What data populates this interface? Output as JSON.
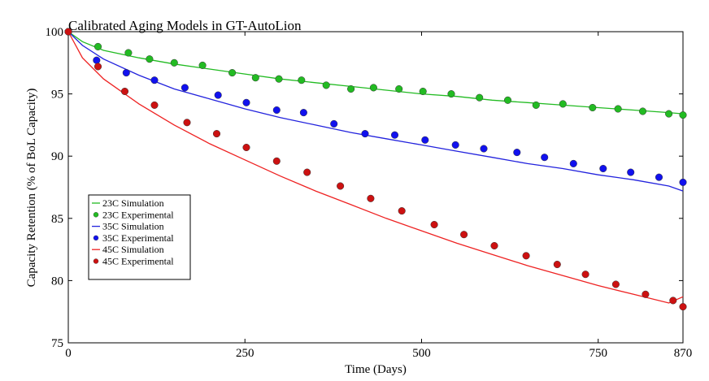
{
  "chart_data": {
    "type": "line",
    "title": "Calibrated Aging Models in GT-AutoLion",
    "xlabel": "Time (Days)",
    "ylabel": "Capacity Retention (% of BoL Capacity)",
    "xlim": [
      0,
      870
    ],
    "ylim": [
      75,
      100
    ],
    "xticks": [
      0,
      250,
      500,
      750,
      870
    ],
    "yticks": [
      75,
      80,
      85,
      90,
      95,
      100
    ],
    "grid": false,
    "legend_position": "lower-left",
    "series": [
      {
        "name": "23C Simulation",
        "kind": "line",
        "color": "#22bb22",
        "x": [
          0,
          20,
          50,
          100,
          150,
          200,
          250,
          300,
          350,
          400,
          450,
          500,
          550,
          600,
          650,
          700,
          750,
          800,
          850,
          870
        ],
        "y": [
          100,
          99.2,
          98.5,
          97.9,
          97.4,
          97.0,
          96.6,
          96.2,
          95.9,
          95.6,
          95.3,
          95.0,
          94.8,
          94.5,
          94.3,
          94.1,
          93.9,
          93.7,
          93.5,
          93.4
        ]
      },
      {
        "name": "23C Experimental",
        "kind": "scatter",
        "color": "#22bb22",
        "x": [
          0,
          42,
          85,
          115,
          150,
          190,
          232,
          265,
          298,
          330,
          365,
          400,
          432,
          468,
          502,
          542,
          582,
          622,
          662,
          700,
          742,
          778,
          813,
          850,
          870
        ],
        "y": [
          100,
          98.8,
          98.3,
          97.8,
          97.5,
          97.3,
          96.7,
          96.3,
          96.2,
          96.1,
          95.7,
          95.4,
          95.5,
          95.4,
          95.2,
          95.0,
          94.7,
          94.5,
          94.1,
          94.2,
          93.9,
          93.8,
          93.6,
          93.4,
          93.3
        ]
      },
      {
        "name": "35C Simulation",
        "kind": "line",
        "color": "#2222dd",
        "x": [
          0,
          20,
          50,
          100,
          150,
          200,
          250,
          300,
          350,
          400,
          450,
          500,
          550,
          600,
          650,
          700,
          750,
          800,
          850,
          870
        ],
        "y": [
          100,
          98.9,
          97.8,
          96.5,
          95.4,
          94.6,
          93.8,
          93.1,
          92.5,
          91.9,
          91.4,
          90.9,
          90.4,
          89.9,
          89.4,
          89.0,
          88.5,
          88.1,
          87.6,
          87.2
        ]
      },
      {
        "name": "35C Experimental",
        "kind": "scatter",
        "color": "#1111ee",
        "x": [
          0,
          40,
          82,
          122,
          165,
          212,
          252,
          295,
          333,
          376,
          420,
          462,
          505,
          548,
          588,
          635,
          674,
          715,
          757,
          796,
          836,
          870
        ],
        "y": [
          100,
          97.7,
          96.7,
          96.1,
          95.5,
          94.9,
          94.3,
          93.7,
          93.5,
          92.6,
          91.8,
          91.7,
          91.3,
          90.9,
          90.6,
          90.3,
          89.9,
          89.4,
          89.0,
          88.7,
          88.3,
          87.9
        ]
      },
      {
        "name": "45C Simulation",
        "kind": "line",
        "color": "#ee2222",
        "x": [
          0,
          20,
          50,
          100,
          150,
          200,
          250,
          300,
          350,
          400,
          450,
          500,
          550,
          600,
          650,
          700,
          750,
          800,
          850,
          870
        ],
        "y": [
          100,
          97.9,
          96.2,
          94.2,
          92.5,
          91.0,
          89.7,
          88.4,
          87.2,
          86.1,
          85.0,
          84.0,
          83.0,
          82.1,
          81.2,
          80.4,
          79.6,
          78.9,
          78.2,
          78.7
        ]
      },
      {
        "name": "45C Experimental",
        "kind": "scatter",
        "color": "#cc1111",
        "x": [
          0,
          42,
          80,
          122,
          168,
          210,
          252,
          295,
          338,
          385,
          428,
          472,
          518,
          560,
          603,
          648,
          692,
          732,
          775,
          817,
          856,
          870
        ],
        "y": [
          100,
          97.2,
          95.2,
          94.1,
          92.7,
          91.8,
          90.7,
          89.6,
          88.7,
          87.6,
          86.6,
          85.6,
          84.5,
          83.7,
          82.8,
          82.0,
          81.3,
          80.5,
          79.7,
          78.9,
          78.4,
          77.9
        ]
      }
    ]
  }
}
